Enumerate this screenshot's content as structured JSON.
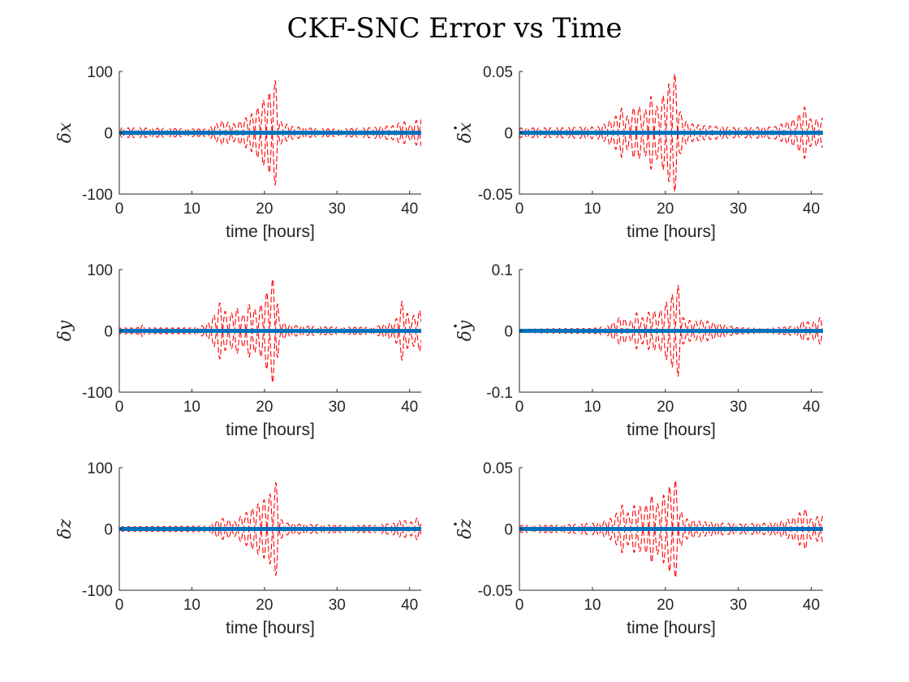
{
  "figure": {
    "title": "CKF-SNC Error vs Time"
  },
  "chart_data": [
    {
      "type": "line",
      "ylabel": "δx",
      "ylabel_dot": false,
      "xlabel": "time [hours]",
      "xlim": [
        0,
        41.6
      ],
      "ylim": [
        -100,
        100
      ],
      "xticks": [
        0,
        10,
        20,
        30,
        40
      ],
      "yticks": [
        -100,
        0,
        100
      ],
      "yticklabels": [
        "-100",
        "0",
        "100"
      ],
      "series": [
        {
          "role": "error",
          "color": "#0072BD",
          "style": "solid",
          "x": [
            0,
            41.6
          ],
          "y": [
            0,
            0
          ]
        },
        {
          "role": "3-sigma bound",
          "color": "#ff0000",
          "style": "dashed",
          "envelope": {
            "x": [
              0,
              3,
              12,
              13,
              14,
              16,
              17,
              18,
              19,
              20,
              21,
              21.8,
              22,
              23,
              24,
              26,
              30,
              34,
              38,
              39,
              40,
              41.6
            ],
            "y": [
              8,
              8,
              6,
              12,
              20,
              14,
              22,
              28,
              40,
              55,
              70,
              95,
              20,
              14,
              10,
              8,
              6,
              8,
              12,
              20,
              12,
              26
            ]
          }
        }
      ]
    },
    {
      "type": "line",
      "ylabel": "δx",
      "ylabel_dot": true,
      "xlabel": "time [hours]",
      "xlim": [
        0,
        41.6
      ],
      "ylim": [
        -0.05,
        0.05
      ],
      "xticks": [
        0,
        10,
        20,
        30,
        40
      ],
      "yticks": [
        -0.05,
        0,
        0.05
      ],
      "yticklabels": [
        "-0.05",
        "0",
        "0.05"
      ],
      "series": [
        {
          "role": "error",
          "color": "#0072BD",
          "style": "solid",
          "x": [
            0,
            41.6
          ],
          "y": [
            0,
            0
          ]
        },
        {
          "role": "3-sigma bound",
          "color": "#ff0000",
          "style": "dashed",
          "envelope": {
            "x": [
              0,
              5,
              11,
              13,
              14,
              15,
              16,
              17,
              18,
              19,
              20,
              21,
              21.5,
              22,
              23,
              25,
              30,
              35,
              38,
              39,
              40,
              41.6
            ],
            "y": [
              0.004,
              0.004,
              0.005,
              0.012,
              0.02,
              0.012,
              0.025,
              0.015,
              0.03,
              0.02,
              0.035,
              0.045,
              0.05,
              0.018,
              0.008,
              0.006,
              0.004,
              0.005,
              0.012,
              0.022,
              0.01,
              0.012
            ]
          }
        }
      ]
    },
    {
      "type": "line",
      "ylabel": "δy",
      "ylabel_dot": false,
      "xlabel": "time [hours]",
      "xlim": [
        0,
        41.6
      ],
      "ylim": [
        -100,
        100
      ],
      "xticks": [
        0,
        10,
        20,
        30,
        40
      ],
      "yticks": [
        -100,
        0,
        100
      ],
      "yticklabels": [
        "-100",
        "0",
        "100"
      ],
      "series": [
        {
          "role": "error",
          "color": "#0072BD",
          "style": "solid",
          "x": [
            0,
            41.6
          ],
          "y": [
            0,
            0
          ]
        },
        {
          "role": "3-sigma bound",
          "color": "#ff0000",
          "style": "dashed",
          "envelope": {
            "x": [
              0,
              2.5,
              3,
              3.5,
              10,
              12,
              13,
              14,
              15,
              16,
              17,
              18,
              19,
              20,
              21,
              21.5,
              22,
              23,
              25,
              30,
              35,
              38,
              39,
              40,
              41.6
            ],
            "y": [
              5,
              5,
              14,
              5,
              5,
              10,
              25,
              50,
              20,
              40,
              25,
              45,
              30,
              55,
              80,
              98,
              20,
              10,
              8,
              6,
              6,
              15,
              50,
              20,
              35
            ]
          }
        }
      ]
    },
    {
      "type": "line",
      "ylabel": "δy",
      "ylabel_dot": true,
      "xlabel": "time [hours]",
      "xlim": [
        0,
        41.6
      ],
      "ylim": [
        -0.1,
        0.1
      ],
      "xticks": [
        0,
        10,
        20,
        30,
        40
      ],
      "yticks": [
        -0.1,
        0,
        0.1
      ],
      "yticklabels": [
        "-0.1",
        "0",
        "0.1"
      ],
      "series": [
        {
          "role": "error",
          "color": "#0072BD",
          "style": "solid",
          "x": [
            0,
            41.6
          ],
          "y": [
            0,
            0
          ]
        },
        {
          "role": "3-sigma bound",
          "color": "#ff0000",
          "style": "dashed",
          "envelope": {
            "x": [
              0,
              10,
              12,
              13,
              14,
              15,
              16,
              17,
              18,
              19,
              20,
              21,
              21.8,
              22.5,
              24,
              25,
              30,
              35,
              38,
              39,
              40,
              41.6
            ],
            "y": [
              0.004,
              0.004,
              0.008,
              0.015,
              0.025,
              0.012,
              0.03,
              0.02,
              0.035,
              0.028,
              0.045,
              0.06,
              0.075,
              0.02,
              0.015,
              0.018,
              0.005,
              0.005,
              0.008,
              0.018,
              0.012,
              0.025
            ]
          }
        }
      ]
    },
    {
      "type": "line",
      "ylabel": "δz",
      "ylabel_dot": false,
      "xlabel": "time [hours]",
      "xlim": [
        0,
        41.6
      ],
      "ylim": [
        -100,
        100
      ],
      "xticks": [
        0,
        10,
        20,
        30,
        40
      ],
      "yticks": [
        -100,
        0,
        100
      ],
      "yticklabels": [
        "-100",
        "0",
        "100"
      ],
      "series": [
        {
          "role": "error",
          "color": "#0072BD",
          "style": "solid",
          "x": [
            0,
            41.6
          ],
          "y": [
            0,
            0
          ]
        },
        {
          "role": "3-sigma bound",
          "color": "#ff0000",
          "style": "dashed",
          "envelope": {
            "x": [
              0,
              3,
              12,
              13,
              14,
              16,
              17,
              18,
              19,
              20,
              21,
              21.8,
              22,
              23,
              25,
              30,
              35,
              38,
              39,
              40,
              41.6
            ],
            "y": [
              4,
              4,
              5,
              10,
              18,
              12,
              24,
              30,
              40,
              48,
              60,
              82,
              18,
              10,
              8,
              6,
              6,
              10,
              16,
              10,
              22
            ]
          }
        }
      ]
    },
    {
      "type": "line",
      "ylabel": "δz",
      "ylabel_dot": true,
      "xlabel": "time [hours]",
      "xlim": [
        0,
        41.6
      ],
      "ylim": [
        -0.05,
        0.05
      ],
      "xticks": [
        0,
        10,
        20,
        30,
        40
      ],
      "yticks": [
        -0.05,
        0,
        0.05
      ],
      "yticklabels": [
        "-0.05",
        "0",
        "0.05"
      ],
      "series": [
        {
          "role": "error",
          "color": "#0072BD",
          "style": "solid",
          "x": [
            0,
            41.6
          ],
          "y": [
            0,
            0
          ]
        },
        {
          "role": "3-sigma bound",
          "color": "#ff0000",
          "style": "dashed",
          "envelope": {
            "x": [
              0,
              5,
              11,
              13,
              14,
              15,
              16,
              17,
              18,
              19,
              20,
              21,
              21.5,
              22,
              23,
              25,
              30,
              35,
              38,
              39,
              40,
              41.6
            ],
            "y": [
              0.003,
              0.003,
              0.005,
              0.01,
              0.02,
              0.012,
              0.022,
              0.015,
              0.028,
              0.02,
              0.03,
              0.038,
              0.04,
              0.015,
              0.008,
              0.006,
              0.004,
              0.005,
              0.01,
              0.018,
              0.008,
              0.012
            ]
          }
        }
      ]
    }
  ]
}
